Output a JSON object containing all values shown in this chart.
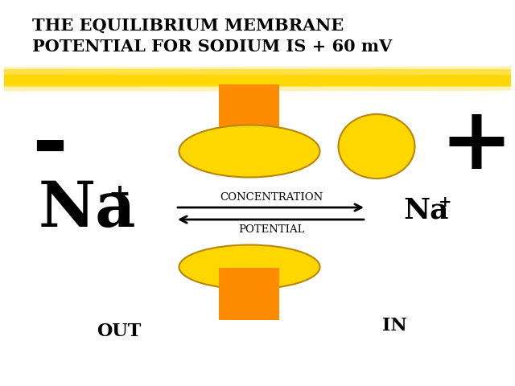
{
  "title_line1": "THE EQUILIBRIUM MEMBRANE",
  "title_line2": "POTENTIAL FOR SODIUM IS + 60 mV",
  "title_fontsize": 15,
  "bg_color": "#ffffff",
  "highlight_color": "#FFD700",
  "orange_color": "#FF8C00",
  "yellow_color": "#FFD700",
  "arrow_color": "#000000",
  "text_color": "#000000",
  "minus_sign": "-",
  "plus_sign": "+",
  "conc_label": "CONCENTRATION",
  "pot_label": "POTENTIAL",
  "out_label": "OUT",
  "in_label": "IN"
}
